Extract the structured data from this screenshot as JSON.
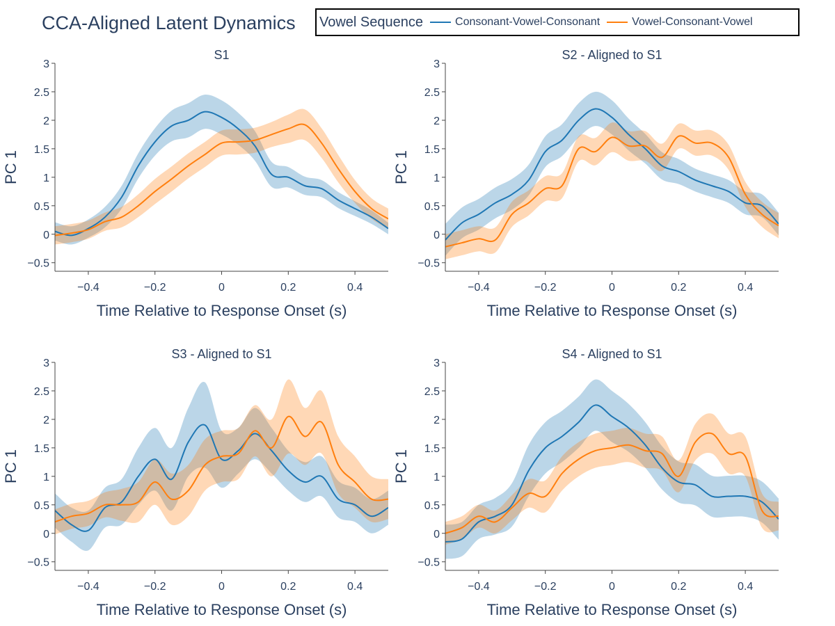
{
  "title": "CCA-Aligned Latent Dynamics",
  "legend": {
    "title": "Vowel Sequence",
    "items": [
      {
        "label": "Consonant-Vowel-Consonant",
        "color": "#1f77b4"
      },
      {
        "label": "Vowel-Consonant-Vowel",
        "color": "#ff7f0e"
      }
    ]
  },
  "chart_data": [
    {
      "type": "line",
      "title": "S1",
      "xlabel": "Time Relative to Response Onset (s)",
      "ylabel": "PC 1",
      "xlim": [
        -0.5,
        0.5
      ],
      "ylim": [
        -0.65,
        3.0
      ],
      "xticks": [
        -0.4,
        -0.2,
        0,
        0.2,
        0.4
      ],
      "xtick_labels": [
        "−0.4",
        "−0.2",
        "0",
        "0.2",
        "0.4"
      ],
      "yticks": [
        -0.5,
        0,
        0.5,
        1,
        1.5,
        2,
        2.5,
        3
      ],
      "ytick_labels": [
        "−0.5",
        "0",
        "0.5",
        "1",
        "1.5",
        "2",
        "2.5",
        "3"
      ],
      "x": [
        -0.5,
        -0.45,
        -0.4,
        -0.35,
        -0.3,
        -0.25,
        -0.2,
        -0.15,
        -0.1,
        -0.05,
        0,
        0.05,
        0.1,
        0.15,
        0.2,
        0.25,
        0.3,
        0.35,
        0.4,
        0.45,
        0.5
      ],
      "series": [
        {
          "name": "Consonant-Vowel-Consonant",
          "color": "#1f77b4",
          "values": [
            0.05,
            -0.02,
            0.1,
            0.3,
            0.65,
            1.2,
            1.62,
            1.9,
            2.0,
            2.15,
            2.05,
            1.85,
            1.55,
            1.05,
            1.0,
            0.85,
            0.8,
            0.6,
            0.45,
            0.3,
            0.1
          ],
          "band": [
            0.16,
            0.16,
            0.16,
            0.18,
            0.2,
            0.22,
            0.24,
            0.27,
            0.3,
            0.3,
            0.3,
            0.28,
            0.26,
            0.22,
            0.18,
            0.16,
            0.15,
            0.14,
            0.13,
            0.12,
            0.1
          ]
        },
        {
          "name": "Vowel-Consonant-Vowel",
          "color": "#ff7f0e",
          "values": [
            -0.02,
            0.02,
            0.08,
            0.22,
            0.3,
            0.5,
            0.75,
            0.97,
            1.2,
            1.4,
            1.6,
            1.62,
            1.65,
            1.75,
            1.85,
            1.92,
            1.6,
            1.15,
            0.75,
            0.45,
            0.27
          ],
          "band": [
            0.16,
            0.16,
            0.16,
            0.16,
            0.18,
            0.2,
            0.22,
            0.22,
            0.22,
            0.22,
            0.22,
            0.22,
            0.22,
            0.22,
            0.25,
            0.27,
            0.26,
            0.24,
            0.2,
            0.18,
            0.18
          ]
        }
      ]
    },
    {
      "type": "line",
      "title": "S2 - Aligned to S1",
      "xlabel": "Time Relative to Response Onset (s)",
      "ylabel": "PC 1",
      "xlim": [
        -0.5,
        0.5
      ],
      "ylim": [
        -0.65,
        3.0
      ],
      "xticks": [
        -0.4,
        -0.2,
        0,
        0.2,
        0.4
      ],
      "xtick_labels": [
        "−0.4",
        "−0.2",
        "0",
        "0.2",
        "0.4"
      ],
      "yticks": [
        -0.5,
        0,
        0.5,
        1,
        1.5,
        2,
        2.5,
        3
      ],
      "ytick_labels": [
        "−0.5",
        "0",
        "0.5",
        "1",
        "1.5",
        "2",
        "2.5",
        "3"
      ],
      "x": [
        -0.5,
        -0.45,
        -0.4,
        -0.35,
        -0.3,
        -0.25,
        -0.2,
        -0.15,
        -0.1,
        -0.05,
        0,
        0.05,
        0.1,
        0.15,
        0.2,
        0.25,
        0.3,
        0.35,
        0.4,
        0.45,
        0.5
      ],
      "series": [
        {
          "name": "Consonant-Vowel-Consonant",
          "color": "#1f77b4",
          "values": [
            -0.1,
            0.2,
            0.35,
            0.55,
            0.7,
            0.95,
            1.45,
            1.65,
            2.0,
            2.2,
            2.05,
            1.75,
            1.5,
            1.2,
            1.1,
            0.95,
            0.85,
            0.75,
            0.55,
            0.5,
            0.18
          ],
          "band": [
            0.28,
            0.27,
            0.27,
            0.27,
            0.27,
            0.27,
            0.27,
            0.28,
            0.3,
            0.3,
            0.3,
            0.28,
            0.26,
            0.24,
            0.22,
            0.2,
            0.2,
            0.2,
            0.2,
            0.2,
            0.2
          ]
        },
        {
          "name": "Vowel-Consonant-Vowel",
          "color": "#ff7f0e",
          "values": [
            -0.22,
            -0.15,
            -0.08,
            -0.1,
            0.35,
            0.55,
            0.8,
            0.85,
            1.5,
            1.45,
            1.7,
            1.55,
            1.55,
            1.35,
            1.72,
            1.6,
            1.6,
            1.35,
            0.7,
            0.35,
            0.15
          ],
          "band": [
            0.22,
            0.22,
            0.22,
            0.22,
            0.22,
            0.22,
            0.22,
            0.22,
            0.22,
            0.24,
            0.26,
            0.26,
            0.26,
            0.24,
            0.22,
            0.22,
            0.22,
            0.22,
            0.22,
            0.22,
            0.22
          ]
        }
      ]
    },
    {
      "type": "line",
      "title": "S3 - Aligned to S1",
      "xlabel": "Time Relative to Response Onset (s)",
      "ylabel": "PC 1",
      "xlim": [
        -0.5,
        0.5
      ],
      "ylim": [
        -0.65,
        3.0
      ],
      "xticks": [
        -0.4,
        -0.2,
        0,
        0.2,
        0.4
      ],
      "xtick_labels": [
        "−0.4",
        "−0.2",
        "0",
        "0.2",
        "0.4"
      ],
      "yticks": [
        -0.5,
        0,
        0.5,
        1,
        1.5,
        2,
        2.5,
        3
      ],
      "ytick_labels": [
        "−0.5",
        "0",
        "0.5",
        "1",
        "1.5",
        "2",
        "2.5",
        "3"
      ],
      "x": [
        -0.5,
        -0.45,
        -0.4,
        -0.35,
        -0.3,
        -0.25,
        -0.2,
        -0.15,
        -0.1,
        -0.05,
        0,
        0.05,
        0.1,
        0.15,
        0.2,
        0.25,
        0.3,
        0.35,
        0.4,
        0.45,
        0.5
      ],
      "series": [
        {
          "name": "Consonant-Vowel-Consonant",
          "color": "#1f77b4",
          "values": [
            0.4,
            0.15,
            0.05,
            0.45,
            0.55,
            1.0,
            1.3,
            0.95,
            1.6,
            1.9,
            1.3,
            1.45,
            1.75,
            1.45,
            1.1,
            0.9,
            1.0,
            0.6,
            0.5,
            0.3,
            0.45
          ],
          "band": [
            0.3,
            0.3,
            0.35,
            0.35,
            0.4,
            0.5,
            0.55,
            0.55,
            0.6,
            0.75,
            0.5,
            0.4,
            0.45,
            0.4,
            0.35,
            0.35,
            0.35,
            0.32,
            0.3,
            0.3,
            0.3
          ]
        },
        {
          "name": "Vowel-Consonant-Vowel",
          "color": "#ff7f0e",
          "values": [
            0.2,
            0.3,
            0.35,
            0.5,
            0.5,
            0.55,
            0.9,
            0.6,
            0.75,
            1.2,
            1.35,
            1.4,
            1.8,
            1.5,
            2.05,
            1.7,
            1.95,
            1.2,
            0.9,
            0.6,
            0.6
          ],
          "band": [
            0.22,
            0.22,
            0.22,
            0.22,
            0.28,
            0.35,
            0.4,
            0.45,
            0.45,
            0.45,
            0.45,
            0.45,
            0.45,
            0.5,
            0.65,
            0.5,
            0.55,
            0.5,
            0.45,
            0.4,
            0.35
          ]
        }
      ]
    },
    {
      "type": "line",
      "title": "S4 - Aligned to S1",
      "xlabel": "Time Relative to Response Onset (s)",
      "ylabel": "PC 1",
      "xlim": [
        -0.5,
        0.5
      ],
      "ylim": [
        -0.65,
        3.0
      ],
      "xticks": [
        -0.4,
        -0.2,
        0,
        0.2,
        0.4
      ],
      "xtick_labels": [
        "−0.4",
        "−0.2",
        "0",
        "0.2",
        "0.4"
      ],
      "yticks": [
        -0.5,
        0,
        0.5,
        1,
        1.5,
        2,
        2.5,
        3
      ],
      "ytick_labels": [
        "−0.5",
        "0",
        "0.5",
        "1",
        "1.5",
        "2",
        "2.5",
        "3"
      ],
      "x": [
        -0.5,
        -0.45,
        -0.4,
        -0.35,
        -0.3,
        -0.25,
        -0.2,
        -0.15,
        -0.1,
        -0.05,
        0,
        0.05,
        0.1,
        0.15,
        0.2,
        0.25,
        0.3,
        0.35,
        0.4,
        0.45,
        0.5
      ],
      "series": [
        {
          "name": "Consonant-Vowel-Consonant",
          "color": "#1f77b4",
          "values": [
            -0.15,
            -0.1,
            0.2,
            0.3,
            0.5,
            1.1,
            1.5,
            1.7,
            1.95,
            2.25,
            2.05,
            1.85,
            1.55,
            1.15,
            0.9,
            0.85,
            0.65,
            0.65,
            0.65,
            0.55,
            0.25
          ],
          "band": [
            0.3,
            0.3,
            0.3,
            0.32,
            0.38,
            0.45,
            0.45,
            0.45,
            0.45,
            0.45,
            0.45,
            0.42,
            0.4,
            0.38,
            0.36,
            0.36,
            0.36,
            0.36,
            0.36,
            0.36,
            0.36
          ]
        },
        {
          "name": "Vowel-Consonant-Vowel",
          "color": "#ff7f0e",
          "values": [
            0.0,
            0.1,
            0.3,
            0.2,
            0.45,
            0.7,
            0.65,
            1.05,
            1.3,
            1.45,
            1.5,
            1.55,
            1.45,
            1.4,
            1.0,
            1.6,
            1.75,
            1.4,
            1.35,
            0.4,
            0.3
          ],
          "band": [
            0.2,
            0.2,
            0.2,
            0.2,
            0.22,
            0.25,
            0.28,
            0.3,
            0.3,
            0.3,
            0.3,
            0.3,
            0.3,
            0.3,
            0.28,
            0.32,
            0.35,
            0.35,
            0.35,
            0.3,
            0.25
          ]
        }
      ]
    }
  ]
}
